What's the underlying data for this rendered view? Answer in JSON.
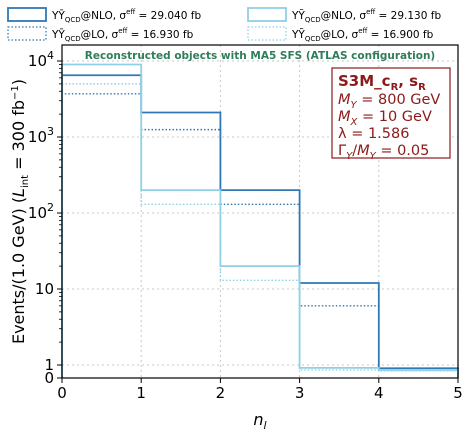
{
  "chart_data": {
    "type": "histogram-step",
    "xlabel": "n_l",
    "ylabel": "Events/(1.0 GeV) (L_int = 300 fb⁻¹)",
    "xlim": [
      0,
      5
    ],
    "ylim": [
      0.55,
      13000
    ],
    "y_scale": "symlog",
    "x_ticks": [
      "0",
      "1",
      "2",
      "3",
      "4",
      "5"
    ],
    "y_ticks": [
      "0",
      "1",
      "10",
      "10²",
      "10³",
      "10⁴"
    ],
    "bin_edges": [
      0,
      1,
      2,
      3,
      4,
      5
    ],
    "series": [
      {
        "name": "YȲQCD@NLO",
        "label_main": "YȲ",
        "label_sub": "QCD",
        "label_tail": "@NLO",
        "sigma_text": "σ^eff = 29.040 fb",
        "values": [
          6500,
          2100,
          200,
          12,
          0.75
        ],
        "color": "#2f78b5",
        "style": "solid"
      },
      {
        "name": "YȲQCD@LO",
        "label_main": "YȲ",
        "label_sub": "QCD",
        "label_tail": "@LO",
        "sigma_text": "σ^eff = 16.930 fb",
        "values": [
          3700,
          1250,
          130,
          6,
          0.6
        ],
        "color": "#2f78b5",
        "style": "dotted"
      },
      {
        "name": "YỸQCD@NLO",
        "label_main": "YỸ",
        "label_sub": "QCD",
        "label_tail": "@NLO",
        "sigma_text": "σ^eff = 29.130 fb",
        "values": [
          9000,
          200,
          20,
          0.78,
          0.6
        ],
        "color": "#8fd0e6",
        "style": "solid"
      },
      {
        "name": "YỸQCD@LO",
        "label_main": "YỸ",
        "label_sub": "QCD",
        "label_tail": "@LO",
        "sigma_text": "σ^eff = 16.900 fb",
        "values": [
          5000,
          130,
          13,
          0.62,
          0.55
        ],
        "color": "#8fd0e6",
        "style": "dotted"
      }
    ],
    "legend_placement": "top",
    "grid": "horizontal dotted",
    "banner": "Reconstructed objects with MA5 SFS (ATLAS configuration)",
    "info_box": {
      "title": "S3M_c_R, s_R",
      "lines": [
        "M_Y = 800 GeV",
        "M_X = 10 GeV",
        "λ = 1.586",
        "Γ_Y/M_Y = 0.05"
      ]
    }
  },
  "colors": {
    "frame": "#000000",
    "banner": "#2e7d5b",
    "info": "#8b1a1a",
    "grid": "#c8c8c8"
  }
}
